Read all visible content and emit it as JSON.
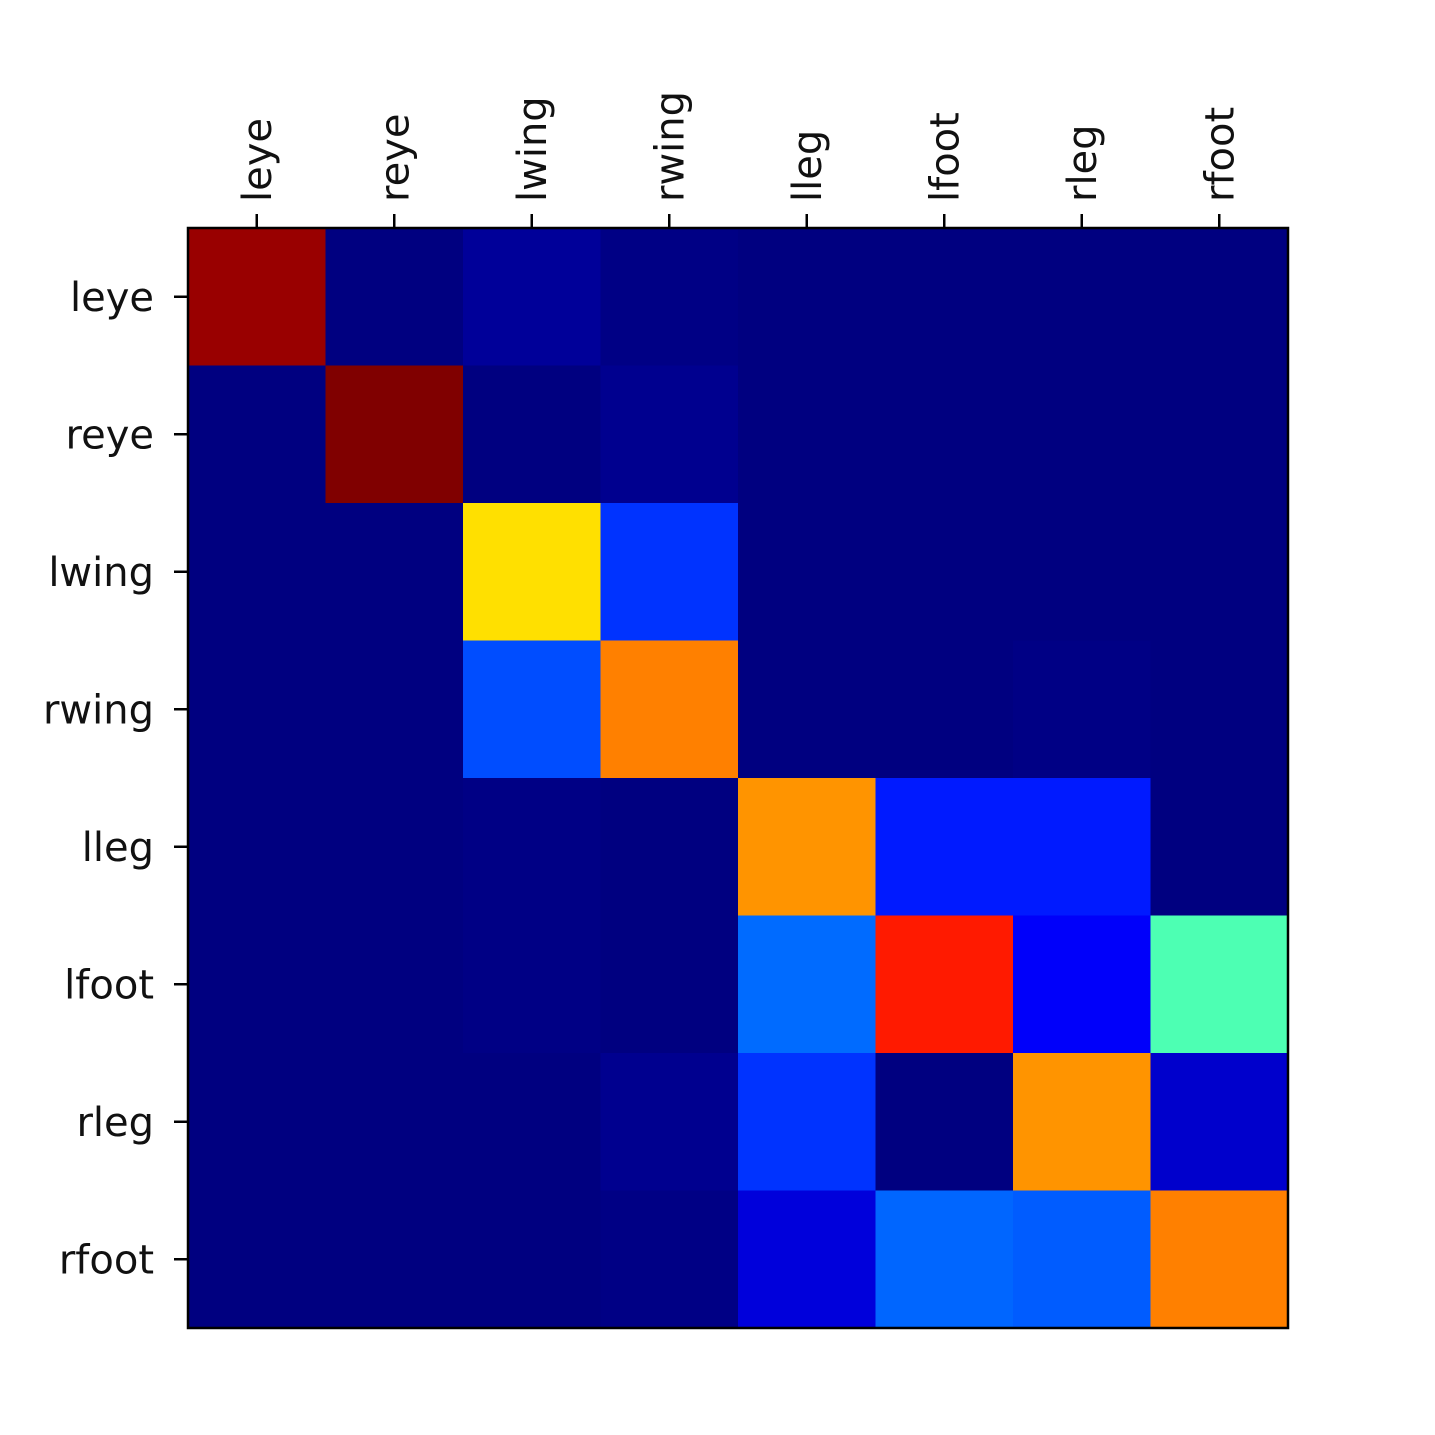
{
  "chart_data": {
    "type": "heatmap",
    "x_categories": [
      "leye",
      "reye",
      "lwing",
      "rwing",
      "lleg",
      "lfoot",
      "rleg",
      "rfoot"
    ],
    "y_categories": [
      "leye",
      "reye",
      "lwing",
      "rwing",
      "lleg",
      "lfoot",
      "rleg",
      "rfoot"
    ],
    "values": [
      [
        0.975,
        0,
        0.025,
        0.005,
        0,
        0,
        0,
        0
      ],
      [
        0,
        1.0,
        0,
        0.015,
        0,
        0,
        0,
        0
      ],
      [
        0,
        0,
        0.655,
        0.175,
        0,
        0,
        0,
        0
      ],
      [
        0,
        0,
        0.2,
        0.75,
        0,
        0,
        0.005,
        0
      ],
      [
        0,
        0,
        0.005,
        0,
        0.73,
        0.15,
        0.15,
        0
      ],
      [
        0,
        0,
        0.005,
        0,
        0.23,
        0.85,
        0.12,
        0.45
      ],
      [
        0,
        0,
        0,
        0.015,
        0.175,
        0,
        0.73,
        0.075
      ],
      [
        0,
        0,
        0,
        0.005,
        0.09,
        0.225,
        0.215,
        0.75
      ]
    ],
    "colormap": "jet",
    "clim": [
      0,
      1
    ],
    "x_axis_position": "top"
  }
}
